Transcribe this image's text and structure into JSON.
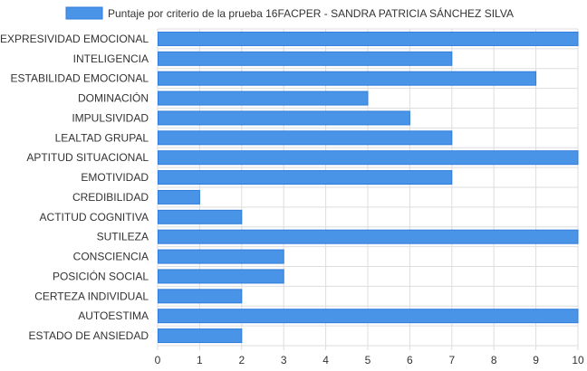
{
  "chart_data": {
    "type": "bar",
    "orientation": "horizontal",
    "categories": [
      "EXPRESIVIDAD EMOCIONAL",
      "INTELIGENCIA",
      "ESTABILIDAD EMOCIONAL",
      "DOMINACIÓN",
      "IMPULSIVIDAD",
      "LEALTAD GRUPAL",
      "APTITUD SITUACIONAL",
      "EMOTIVIDAD",
      "CREDIBILIDAD",
      "ACTITUD COGNITIVA",
      "SUTILEZA",
      "CONSCIENCIA",
      "POSICIÓN SOCIAL",
      "CERTEZA INDIVIDUAL",
      "AUTOESTIMA",
      "ESTADO DE ANSIEDAD"
    ],
    "series": [
      {
        "name": "Puntaje por criterio de la prueba 16FACPER - SANDRA PATRICIA SÁNCHEZ SILVA",
        "values": [
          10,
          7,
          9,
          5,
          6,
          7,
          10,
          7,
          1,
          2,
          10,
          3,
          3,
          2,
          10,
          2
        ]
      }
    ],
    "xlim": [
      0,
      10
    ],
    "x_ticks": [
      "0",
      "1",
      "2",
      "3",
      "4",
      "5",
      "6",
      "7",
      "8",
      "9",
      "10"
    ],
    "grid": true,
    "legend_position": "top",
    "colors": {
      "bar_fill": "#4a94e8",
      "bar_stroke": "#2f7ddc",
      "grid": "#dddddd"
    }
  }
}
